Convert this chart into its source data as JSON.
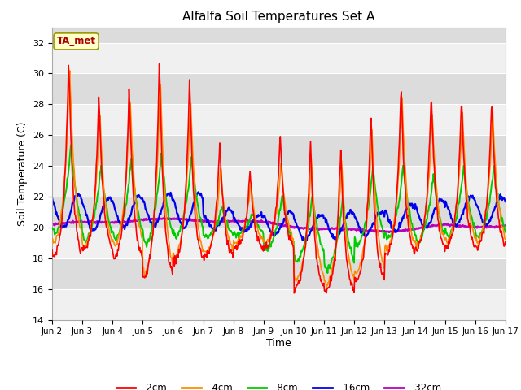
{
  "title": "Alfalfa Soil Temperatures Set A",
  "xlabel": "Time",
  "ylabel": "Soil Temperature (C)",
  "ylim": [
    14,
    33
  ],
  "xlim": [
    0,
    15
  ],
  "x_tick_labels": [
    "Jun 2",
    "Jun 3",
    "Jun 4",
    "Jun 5",
    "Jun 6",
    "Jun 7",
    "Jun 8",
    "Jun 9",
    "Jun 10",
    "Jun 11",
    "Jun 12",
    "Jun 13",
    "Jun 14",
    "Jun 15",
    "Jun 16",
    "Jun 17"
  ],
  "annotation_text": "TA_met",
  "annotation_bg": "#FFFFCC",
  "annotation_border": "#999900",
  "bg_color": "#E8E8E8",
  "plot_bg_upper": "#DCDCDC",
  "plot_bg_lower": "#F0F0F0",
  "series_colors": {
    "-2cm": "#FF0000",
    "-4cm": "#FF8C00",
    "-8cm": "#00CC00",
    "-16cm": "#0000EE",
    "-32cm": "#BB00BB"
  },
  "series_linewidths": {
    "-2cm": 1.2,
    "-4cm": 1.2,
    "-8cm": 1.4,
    "-16cm": 1.6,
    "-32cm": 1.8
  },
  "day_peaks_2cm": [
    31.3,
    28.7,
    29.3,
    31.1,
    29.8,
    25.6,
    23.8,
    26.1,
    25.7,
    25.4,
    27.8,
    29.6,
    29.1,
    28.6
  ],
  "day_troughs_2cm": [
    18.1,
    18.5,
    18.0,
    16.8,
    17.8,
    18.1,
    18.6,
    18.7,
    16.1,
    15.8,
    16.5,
    18.2,
    18.5,
    18.7
  ],
  "day_peaks_4cm": [
    30.5,
    27.5,
    28.5,
    30.0,
    28.5,
    24.0,
    23.0,
    24.5,
    24.5,
    24.5,
    26.5,
    28.5,
    27.5,
    27.5
  ],
  "day_troughs_4cm": [
    19.0,
    18.7,
    18.8,
    17.0,
    18.0,
    18.3,
    19.0,
    19.0,
    16.5,
    16.3,
    17.0,
    18.5,
    18.8,
    19.0
  ],
  "day_peaks_8cm": [
    25.4,
    24.2,
    24.5,
    25.0,
    24.8,
    21.4,
    21.0,
    22.2,
    22.2,
    22.0,
    24.0,
    24.0,
    23.5,
    24.0
  ],
  "day_troughs_8cm": [
    19.5,
    19.0,
    19.2,
    18.8,
    19.3,
    19.3,
    19.5,
    18.5,
    17.8,
    17.2,
    18.8,
    19.2,
    19.0,
    19.3
  ],
  "day_peaks_16cm": [
    22.2,
    21.9,
    22.0,
    22.2,
    22.2,
    21.1,
    20.8,
    21.0,
    20.8,
    21.0,
    21.0,
    21.5,
    21.8,
    22.0
  ],
  "day_troughs_16cm": [
    20.0,
    19.8,
    20.0,
    20.1,
    20.0,
    19.9,
    19.8,
    19.5,
    19.2,
    19.3,
    19.5,
    19.8,
    20.0,
    20.2
  ],
  "base_32cm": [
    20.2,
    20.3,
    20.4,
    20.5,
    20.5,
    20.5,
    20.4,
    20.3,
    20.1,
    19.9,
    19.8,
    19.8,
    19.9,
    20.1
  ]
}
